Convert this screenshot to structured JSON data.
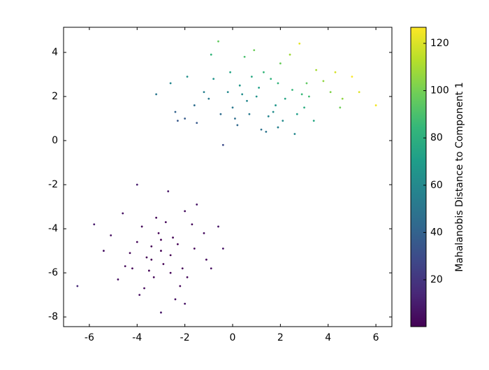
{
  "chart_data": {
    "type": "scatter",
    "x": [
      1.0,
      0.3,
      1.8,
      -0.5,
      2.5,
      0.8,
      1.5,
      -1.2,
      3.2,
      0.0,
      2.0,
      -2.0,
      3.8,
      1.2,
      -0.8,
      4.5,
      0.5,
      2.7,
      -3.2,
      5.0,
      6.0,
      -0.4,
      2.8,
      1.9,
      0.6,
      -1.6,
      3.5,
      1.4,
      -0.2,
      2.2,
      4.1,
      0.9,
      -2.6,
      2.6,
      5.3,
      -0.9,
      1.1,
      3.0,
      -1.5,
      0.2,
      2.4,
      -2.4,
      4.6,
      1.7,
      0.4,
      3.4,
      -0.6,
      1.3,
      -1.9,
      2.1,
      0.7,
      4.3,
      -1.0,
      3.1,
      1.6,
      -0.1,
      2.9,
      0.1,
      -2.3,
      1.9,
      -3.0,
      -2.5,
      -3.6,
      -2.1,
      -4.0,
      -3.3,
      -2.8,
      -1.6,
      -4.5,
      -3.1,
      -2.2,
      -5.1,
      -3.9,
      -2.0,
      -6.5,
      -0.4,
      -4.0,
      -1.5,
      -3.0,
      -5.8,
      -0.9,
      -2.6,
      -3.4,
      -2.9,
      -3.8,
      -1.2,
      -4.8,
      -2.4,
      -3.5,
      -2.3,
      -4.3,
      -1.9,
      -3.2,
      -2.7,
      -5.4,
      -1.1,
      -3.7,
      -0.6,
      -4.6,
      -2.0,
      -3.0,
      -2.6,
      -4.2,
      -3.4,
      -1.7
    ],
    "y": [
      2.0,
      2.5,
      1.6,
      1.2,
      2.3,
      2.9,
      1.1,
      2.2,
      2.0,
      1.5,
      3.5,
      1.0,
      2.7,
      0.5,
      2.8,
      1.5,
      3.8,
      1.2,
      2.1,
      2.9,
      1.6,
      -0.2,
      4.4,
      2.6,
      1.8,
      1.6,
      3.2,
      0.4,
      2.2,
      1.9,
      2.2,
      4.1,
      2.6,
      0.3,
      2.2,
      3.9,
      2.4,
      1.5,
      0.8,
      0.7,
      3.9,
      1.3,
      1.9,
      1.3,
      2.1,
      0.9,
      4.5,
      3.1,
      2.9,
      0.9,
      1.2,
      3.1,
      1.9,
      2.6,
      2.8,
      3.1,
      2.1,
      1.0,
      0.9,
      0.6,
      -5.0,
      -4.4,
      -5.3,
      -5.8,
      -4.6,
      -6.2,
      -3.7,
      -4.9,
      -5.7,
      -4.2,
      -6.6,
      -4.3,
      -7.0,
      -3.2,
      -6.6,
      -4.9,
      -2.0,
      -2.9,
      -7.8,
      -3.8,
      -5.8,
      -5.2,
      -4.8,
      -5.6,
      -3.9,
      -4.2,
      -6.3,
      -7.2,
      -5.9,
      -4.7,
      -5.1,
      -6.2,
      -3.5,
      -2.3,
      -5.0,
      -5.4,
      -6.7,
      -3.9,
      -3.3,
      -7.4,
      -4.5,
      -6.0,
      -5.8,
      -5.4,
      -3.8
    ],
    "c": [
      65,
      67.1,
      66.6,
      44.7,
      83.5,
      76.9,
      57.5,
      55.1,
      87.4,
      51.3,
      97.3,
      37,
      105.5,
      47.9,
      65.7,
      98.5,
      89.7,
      70.9,
      50.5,
      126.4,
      124.6,
      29.8,
      122,
      81.8,
      59.2,
      45.5,
      109.5,
      48.5,
      59.7,
      74.7,
      102.3,
      98,
      57.9,
      59.5,
      120.7,
      83.6,
      71.6,
      78.3,
      35.9,
      42.7,
      108.4,
      40.1,
      105.4,
      61.8,
      62,
      75.8,
      96,
      84.1,
      63.6,
      60.8,
      52.1,
      118.9,
      51.6,
      95,
      82,
      74,
      85.2,
      45.6,
      35.3,
      55.4,
      0,
      0.6,
      0.5,
      1.5,
      1.2,
      1.5,
      1.7,
      2,
      2.7,
      0.7,
      3.2,
      4.9,
      4.8,
      4.2,
      14.8,
      6.8,
      10,
      6.7,
      7.8,
      9.3,
      5.1,
      0.2,
      0.2,
      0.4,
      1.9,
      3.9,
      4.9,
      5.2,
      1.1,
      0.6,
      1.7,
      2.7,
      2.3,
      7.4,
      5.8,
      3.8,
      3.4,
      7,
      5.5,
      6.8,
      0.25,
      1.2,
      2.1,
      0.3,
      3.1
    ],
    "xlim": [
      -7.08,
      6.67
    ],
    "ylim": [
      -8.44,
      5.14
    ],
    "xticks": [
      -6,
      -4,
      -2,
      0,
      2,
      4,
      6
    ],
    "yticks": [
      -8,
      -6,
      -4,
      -2,
      0,
      2,
      4
    ],
    "colorbar": {
      "label": "Mahalanobis Distance to Component 1",
      "lim": [
        0.18,
        126.8
      ],
      "ticks": [
        20,
        40,
        60,
        80,
        100,
        120
      ]
    },
    "colormap": [
      "#440154",
      "#482878",
      "#3e4989",
      "#31688e",
      "#26828e",
      "#1f9e89",
      "#35b779",
      "#6ece58",
      "#b5de2b",
      "#fde725"
    ]
  }
}
